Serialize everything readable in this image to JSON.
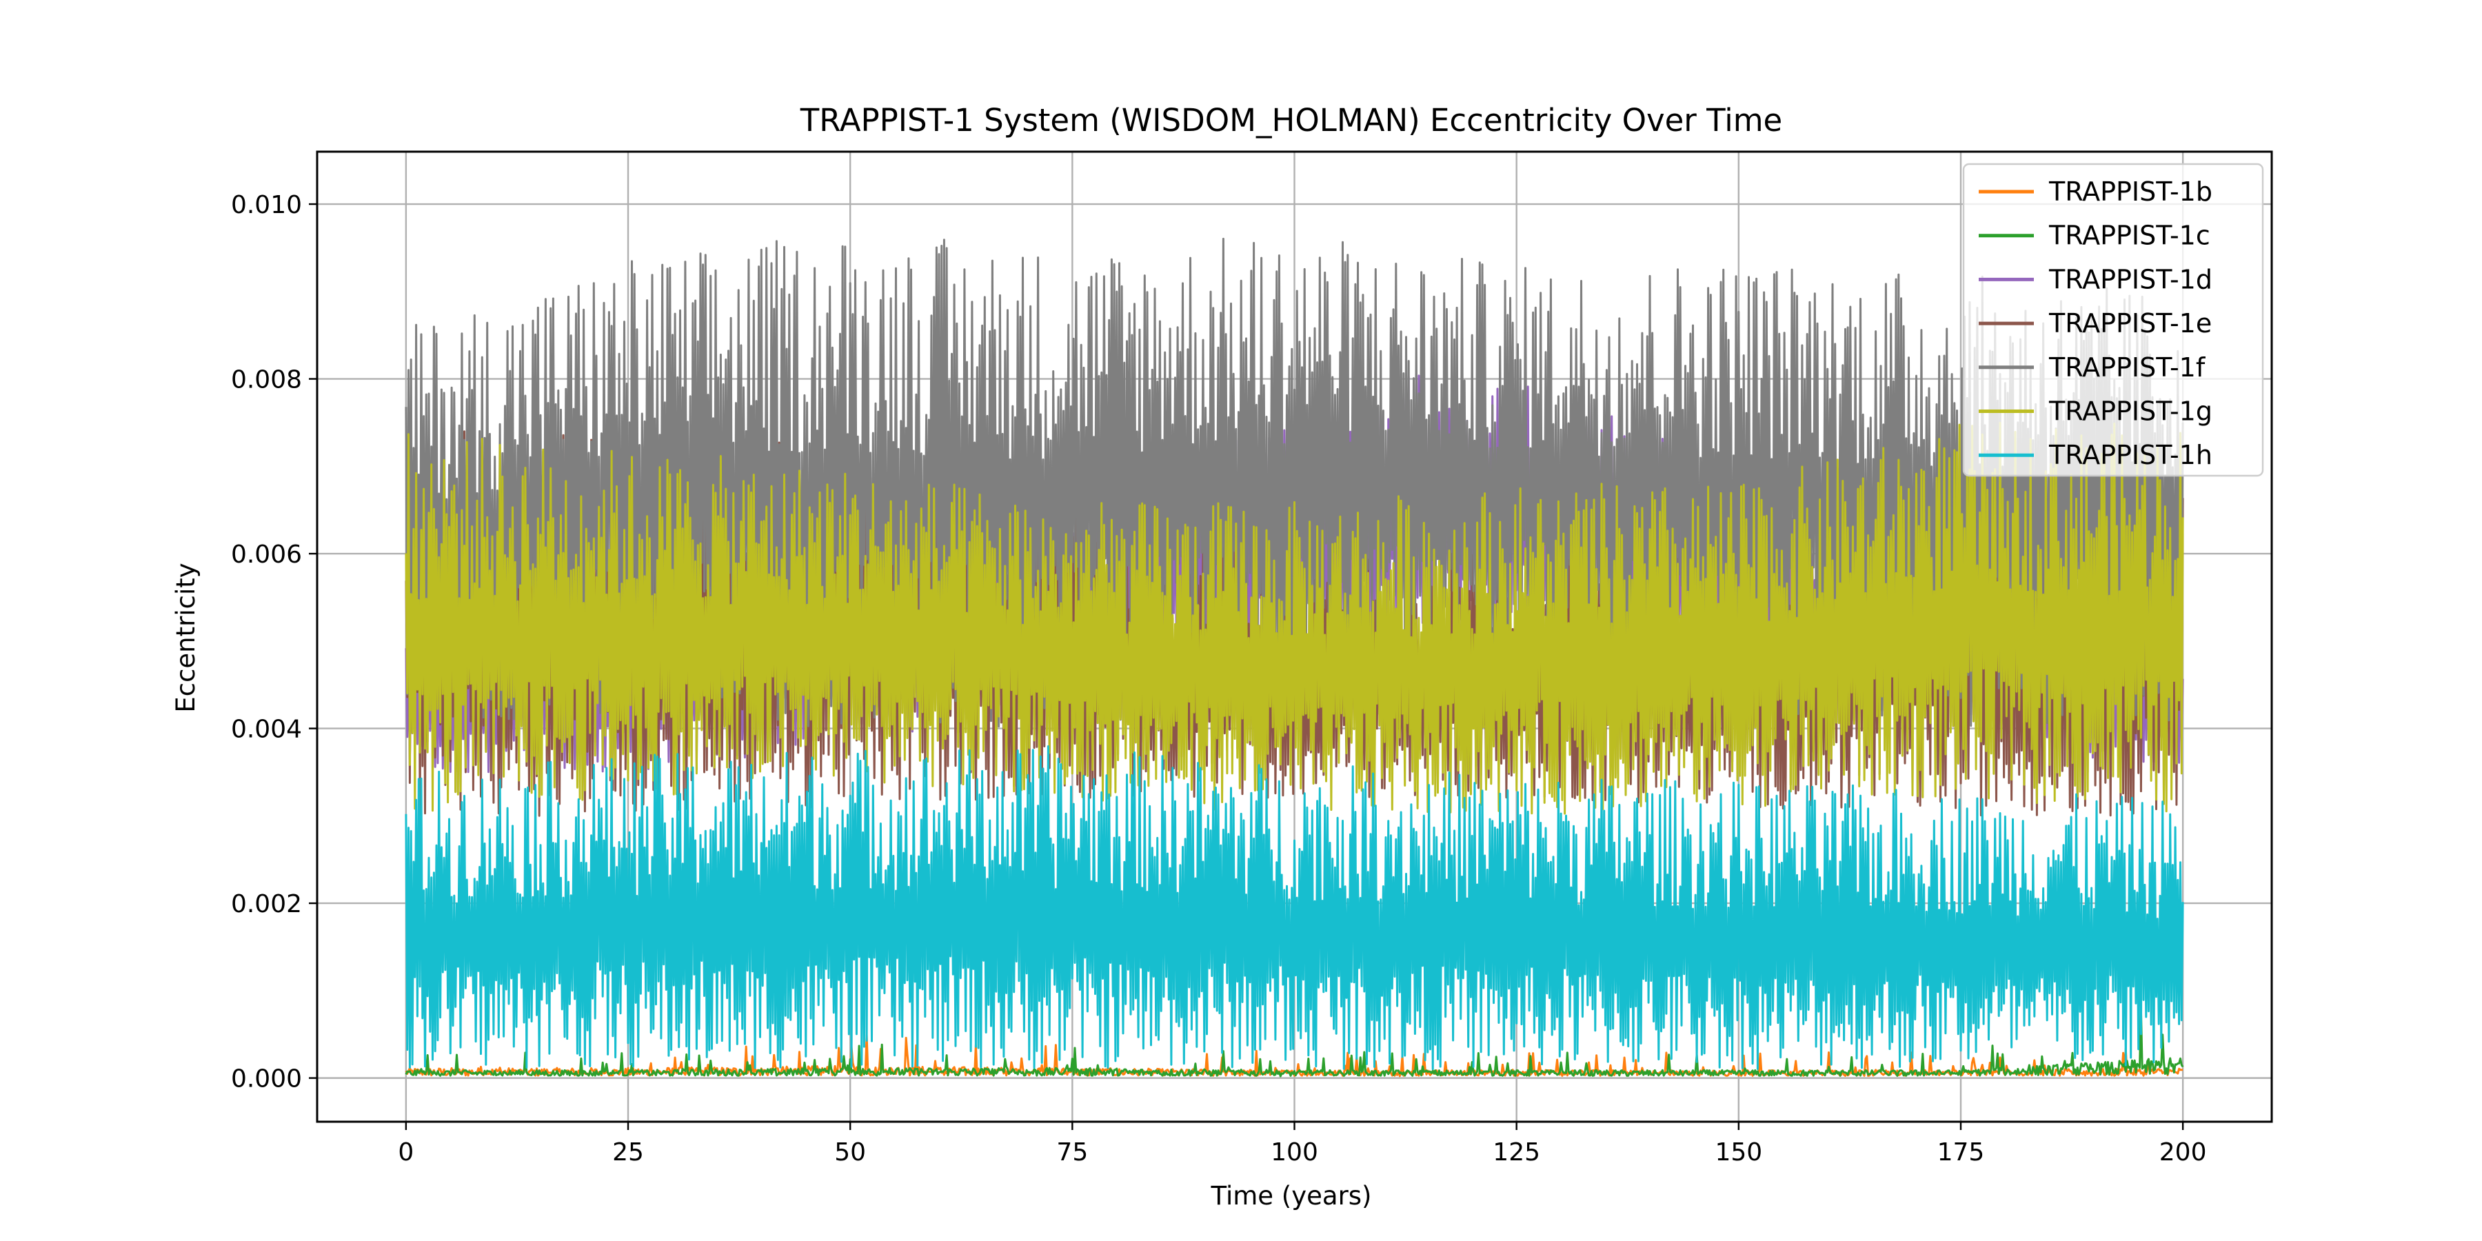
{
  "chart_data": {
    "type": "line",
    "title": "TRAPPIST-1 System (WISDOM_HOLMAN) Eccentricity Over Time",
    "xlabel": "Time (years)",
    "ylabel": "Eccentricity",
    "xlim": [
      -10,
      210
    ],
    "ylim": [
      -0.0005,
      0.0106
    ],
    "xticks": [
      0,
      25,
      50,
      75,
      100,
      125,
      150,
      175,
      200
    ],
    "yticks": [
      0.0,
      0.002,
      0.004,
      0.006,
      0.008,
      0.01
    ],
    "xtick_labels": [
      "0",
      "25",
      "50",
      "75",
      "100",
      "125",
      "150",
      "175",
      "200"
    ],
    "ytick_labels": [
      "0.000",
      "0.002",
      "0.004",
      "0.006",
      "0.008",
      "0.010"
    ],
    "grid": true,
    "legend_position": "top-right",
    "series": [
      {
        "name": "TRAPPIST-1b",
        "color": "#ff7f0e",
        "shape": "near-zero",
        "x": [
          0,
          25,
          50,
          75,
          100,
          125,
          150,
          175,
          200
        ],
        "min": [
          2e-05,
          2e-05,
          2e-05,
          2e-05,
          2e-05,
          2e-05,
          2e-05,
          2e-05,
          2e-05
        ],
        "max": [
          0.0004,
          0.0004,
          0.0005,
          0.0004,
          0.0003,
          0.0003,
          0.0003,
          0.0003,
          0.0004
        ]
      },
      {
        "name": "TRAPPIST-1c",
        "color": "#2ca02c",
        "shape": "near-zero",
        "x": [
          0,
          25,
          50,
          75,
          100,
          125,
          150,
          175,
          200
        ],
        "min": [
          2e-05,
          2e-05,
          2e-05,
          2e-05,
          2e-05,
          2e-05,
          2e-05,
          2e-05,
          2e-05
        ],
        "max": [
          0.0003,
          0.0003,
          0.0004,
          0.0004,
          0.0003,
          0.0003,
          0.0003,
          0.0003,
          0.0009
        ]
      },
      {
        "name": "TRAPPIST-1d",
        "color": "#9467bd",
        "shape": "band",
        "x": [
          0,
          25,
          50,
          60,
          75,
          90,
          100,
          115,
          125,
          135,
          150,
          160,
          175,
          190,
          200
        ],
        "min": [
          0.0035,
          0.0035,
          0.0038,
          0.004,
          0.0042,
          0.0045,
          0.0048,
          0.005,
          0.005,
          0.005,
          0.0048,
          0.0045,
          0.004,
          0.0036,
          0.0035
        ],
        "max": [
          0.0052,
          0.0054,
          0.0057,
          0.006,
          0.0065,
          0.0072,
          0.0076,
          0.0081,
          0.008,
          0.0078,
          0.0072,
          0.0065,
          0.0058,
          0.0053,
          0.0052
        ]
      },
      {
        "name": "TRAPPIST-1e",
        "color": "#8c564b",
        "shape": "band",
        "x": [
          0,
          25,
          50,
          75,
          100,
          125,
          150,
          175,
          200
        ],
        "min": [
          0.003,
          0.003,
          0.0031,
          0.0032,
          0.0032,
          0.0032,
          0.0031,
          0.003,
          0.003
        ],
        "max": [
          0.0074,
          0.0075,
          0.0073,
          0.0065,
          0.006,
          0.006,
          0.0062,
          0.0068,
          0.0072
        ]
      },
      {
        "name": "TRAPPIST-1f",
        "color": "#7f7f7f",
        "shape": "band",
        "x": [
          0,
          25,
          50,
          75,
          100,
          125,
          150,
          175,
          200
        ],
        "min": [
          0.004,
          0.004,
          0.004,
          0.004,
          0.0042,
          0.0045,
          0.0042,
          0.004,
          0.004
        ],
        "max": [
          0.0086,
          0.0094,
          0.0097,
          0.0095,
          0.0097,
          0.0093,
          0.0094,
          0.0092,
          0.009
        ]
      },
      {
        "name": "TRAPPIST-1g",
        "color": "#bcbd22",
        "shape": "band",
        "x": [
          0,
          25,
          50,
          75,
          100,
          125,
          150,
          175,
          200
        ],
        "min": [
          0.003,
          0.0032,
          0.0034,
          0.0032,
          0.003,
          0.003,
          0.0031,
          0.0032,
          0.003
        ],
        "max": [
          0.0074,
          0.0072,
          0.007,
          0.0066,
          0.0066,
          0.0068,
          0.0068,
          0.0075,
          0.0075
        ]
      },
      {
        "name": "TRAPPIST-1h",
        "color": "#17becf",
        "shape": "band",
        "x": [
          0,
          25,
          50,
          75,
          100,
          125,
          150,
          175,
          200
        ],
        "min": [
          0.0001,
          0.0001,
          0.0001,
          0.0001,
          0.0001,
          0.0001,
          0.0001,
          0.0001,
          0.0001
        ],
        "max": [
          0.0035,
          0.0037,
          0.0038,
          0.0038,
          0.0036,
          0.0035,
          0.0034,
          0.0033,
          0.0032
        ]
      }
    ]
  }
}
